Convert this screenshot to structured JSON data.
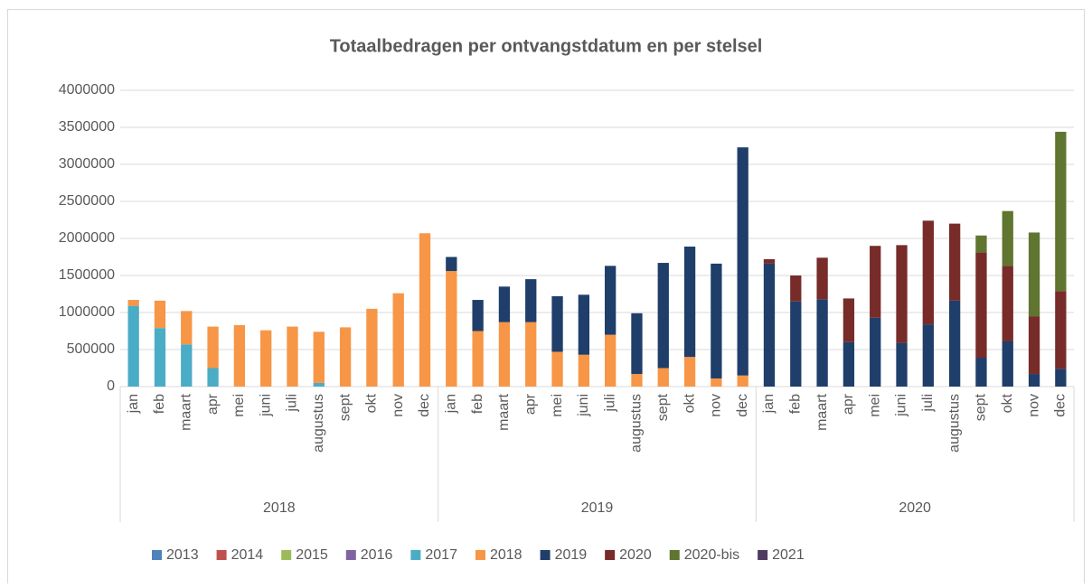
{
  "chart_data": {
    "type": "stacked_bar",
    "title": "Totaalbedragen per ontvangstdatum en per stelsel",
    "groups": [
      {
        "label": "2018",
        "categories": [
          "jan",
          "feb",
          "maart",
          "apr",
          "mei",
          "juni",
          "juli",
          "augustus",
          "sept",
          "okt",
          "nov",
          "dec"
        ]
      },
      {
        "label": "2019",
        "categories": [
          "jan",
          "feb",
          "maart",
          "apr",
          "mei",
          "juni",
          "juli",
          "augustus",
          "sept",
          "okt",
          "nov",
          "dec"
        ]
      },
      {
        "label": "2020",
        "categories": [
          "jan",
          "feb",
          "maart",
          "apr",
          "mei",
          "juni",
          "juli",
          "augustus",
          "sept",
          "okt",
          "nov",
          "dec"
        ]
      }
    ],
    "series": [
      {
        "name": "2013",
        "color": "#4f81bd",
        "values": [
          0,
          0,
          0,
          0,
          0,
          0,
          0,
          0,
          0,
          0,
          0,
          0,
          0,
          0,
          0,
          0,
          0,
          0,
          0,
          0,
          0,
          0,
          0,
          0,
          0,
          0,
          0,
          0,
          0,
          0,
          0,
          0,
          0,
          0,
          0,
          0
        ]
      },
      {
        "name": "2014",
        "color": "#c0504d",
        "values": [
          0,
          0,
          0,
          0,
          0,
          0,
          0,
          0,
          0,
          0,
          0,
          0,
          0,
          0,
          0,
          0,
          0,
          0,
          0,
          0,
          0,
          0,
          0,
          0,
          0,
          0,
          0,
          0,
          0,
          0,
          0,
          0,
          0,
          0,
          0,
          0
        ]
      },
      {
        "name": "2015",
        "color": "#9bbb59",
        "values": [
          0,
          0,
          0,
          0,
          0,
          0,
          0,
          0,
          0,
          0,
          0,
          0,
          0,
          0,
          0,
          0,
          0,
          0,
          0,
          0,
          0,
          0,
          0,
          0,
          0,
          0,
          0,
          0,
          0,
          0,
          0,
          0,
          0,
          0,
          0,
          0
        ]
      },
      {
        "name": "2016",
        "color": "#8064a2",
        "values": [
          0,
          0,
          0,
          0,
          0,
          0,
          0,
          0,
          0,
          0,
          0,
          0,
          0,
          0,
          0,
          0,
          0,
          0,
          0,
          0,
          0,
          0,
          0,
          0,
          0,
          0,
          0,
          0,
          0,
          0,
          0,
          0,
          0,
          0,
          0,
          0
        ]
      },
      {
        "name": "2017",
        "color": "#4bacc6",
        "values": [
          1090000,
          790000,
          570000,
          250000,
          0,
          0,
          0,
          50000,
          0,
          0,
          0,
          0,
          0,
          0,
          0,
          0,
          0,
          0,
          0,
          0,
          0,
          0,
          0,
          0,
          0,
          0,
          0,
          0,
          0,
          0,
          0,
          0,
          0,
          0,
          0,
          0
        ]
      },
      {
        "name": "2018",
        "color": "#f79646",
        "values": [
          80000,
          370000,
          450000,
          560000,
          830000,
          760000,
          810000,
          690000,
          800000,
          1050000,
          1260000,
          2070000,
          1560000,
          750000,
          870000,
          870000,
          470000,
          430000,
          700000,
          170000,
          250000,
          400000,
          110000,
          150000,
          0,
          0,
          0,
          0,
          0,
          0,
          0,
          0,
          0,
          0,
          0,
          0
        ]
      },
      {
        "name": "2019",
        "color": "#1f3e6a",
        "values": [
          0,
          0,
          0,
          0,
          0,
          0,
          0,
          0,
          0,
          0,
          0,
          0,
          190000,
          420000,
          480000,
          580000,
          750000,
          810000,
          930000,
          820000,
          1420000,
          1490000,
          1550000,
          3080000,
          1660000,
          1150000,
          1180000,
          600000,
          930000,
          590000,
          840000,
          1160000,
          390000,
          610000,
          170000,
          240000
        ]
      },
      {
        "name": "2020",
        "color": "#772c2a",
        "values": [
          0,
          0,
          0,
          0,
          0,
          0,
          0,
          0,
          0,
          0,
          0,
          0,
          0,
          0,
          0,
          0,
          0,
          0,
          0,
          0,
          0,
          0,
          0,
          0,
          60000,
          350000,
          560000,
          590000,
          970000,
          1320000,
          1400000,
          1040000,
          1420000,
          1020000,
          780000,
          1050000
        ]
      },
      {
        "name": "2020-bis",
        "color": "#5f7530",
        "values": [
          0,
          0,
          0,
          0,
          0,
          0,
          0,
          0,
          0,
          0,
          0,
          0,
          0,
          0,
          0,
          0,
          0,
          0,
          0,
          0,
          0,
          0,
          0,
          0,
          0,
          0,
          0,
          0,
          0,
          0,
          0,
          0,
          230000,
          740000,
          1130000,
          2150000
        ]
      },
      {
        "name": "2021",
        "color": "#4d3b62",
        "values": [
          0,
          0,
          0,
          0,
          0,
          0,
          0,
          0,
          0,
          0,
          0,
          0,
          0,
          0,
          0,
          0,
          0,
          0,
          0,
          0,
          0,
          0,
          0,
          0,
          0,
          0,
          0,
          0,
          0,
          0,
          0,
          0,
          0,
          0,
          0,
          0
        ]
      }
    ],
    "ylim": [
      0,
      4000000
    ],
    "yticks": [
      0,
      500000,
      1000000,
      1500000,
      2000000,
      2500000,
      3000000,
      3500000,
      4000000
    ],
    "grid": true,
    "legend": "bottom"
  }
}
